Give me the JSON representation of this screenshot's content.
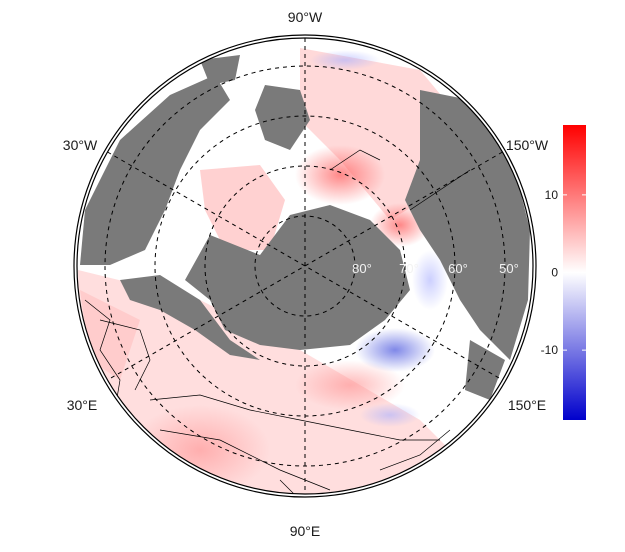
{
  "map": {
    "projection": "north-polar-stereographic",
    "center": "North Pole",
    "land_color": "#7a7a7a",
    "ocean_color": "#ffffff",
    "border_color": "#000000",
    "graticule_style": "dashed",
    "longitude_labels": {
      "top": "90°W",
      "left_upper": "30°W",
      "right_upper": "150°W",
      "left_lower": "30°E",
      "right_lower": "150°E",
      "bottom": "90°E"
    },
    "latitude_labels": [
      "80°",
      "70°",
      "60°",
      "50°"
    ]
  },
  "colorbar": {
    "colors": {
      "low": "#0000cc",
      "mid": "#ffffff",
      "high": "#ff0000"
    },
    "range": [
      -19,
      19
    ],
    "ticks": [
      {
        "value": 10,
        "label": "10"
      },
      {
        "value": 0,
        "label": "0"
      },
      {
        "value": -10,
        "label": "-10"
      }
    ]
  }
}
